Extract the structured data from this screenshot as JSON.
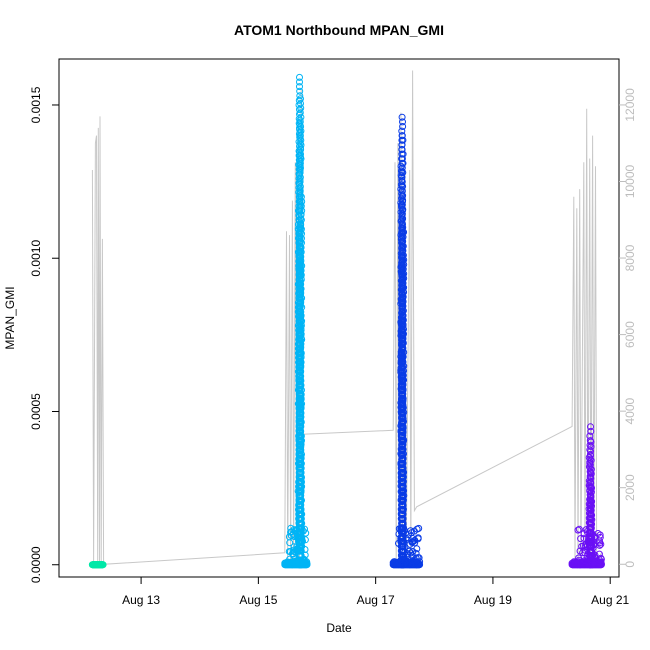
{
  "chart_data": {
    "type": "scatter",
    "title": "ATOM1 Northbound MPAN_GMI",
    "xlabel": "Date",
    "ylabel": "MPAN_GMI",
    "y_ticks": [
      "0.0000",
      "0.0005",
      "0.0010",
      "0.0015"
    ],
    "y_tick_values": [
      0,
      0.0005,
      0.001,
      0.0015
    ],
    "ylim": [
      -4e-05,
      0.00165
    ],
    "x_ticks": [
      "Aug 13",
      "Aug 15",
      "Aug 17",
      "Aug 19",
      "Aug 21"
    ],
    "x_tick_values": [
      13,
      15,
      17,
      19,
      21
    ],
    "xlim": [
      11.6,
      21.15
    ],
    "y2_ticks": [
      "0",
      "2000",
      "4000",
      "6000",
      "8000",
      "10000",
      "12000"
    ],
    "y2_tick_values": [
      0,
      2000,
      4000,
      6000,
      8000,
      10000,
      12000
    ],
    "y2lim": [
      -333,
      13200
    ],
    "series": [
      {
        "color": "#00e8a8",
        "x_start": 12.17,
        "x_end": 12.35,
        "max_value": 5e-06,
        "spikes": []
      },
      {
        "color": "#00b4f5",
        "x_start": 15.45,
        "x_end": 15.83,
        "max_value": 0.00159,
        "spikes": [
          {
            "x": 15.7,
            "y": 0.00159
          },
          {
            "x": 15.72,
            "y": 0.00152
          },
          {
            "x": 15.71,
            "y": 0.00145
          },
          {
            "x": 15.69,
            "y": 0.00135
          },
          {
            "x": 15.73,
            "y": 0.0012
          },
          {
            "x": 15.7,
            "y": 0.0011
          },
          {
            "x": 15.71,
            "y": 0.001
          },
          {
            "x": 15.72,
            "y": 0.0008
          },
          {
            "x": 15.7,
            "y": 0.00065
          },
          {
            "x": 15.71,
            "y": 0.00055
          },
          {
            "x": 15.72,
            "y": 0.0004
          },
          {
            "x": 15.7,
            "y": 0.00025
          },
          {
            "x": 15.73,
            "y": 0.00015
          }
        ]
      },
      {
        "color": "#0a3ce6",
        "x_start": 17.3,
        "x_end": 17.75,
        "max_value": 0.00146,
        "spikes": [
          {
            "x": 17.45,
            "y": 0.00146
          },
          {
            "x": 17.46,
            "y": 0.0014
          },
          {
            "x": 17.44,
            "y": 0.0013
          },
          {
            "x": 17.45,
            "y": 0.0012
          },
          {
            "x": 17.47,
            "y": 0.0011
          },
          {
            "x": 17.45,
            "y": 0.001
          },
          {
            "x": 17.46,
            "y": 0.0009
          },
          {
            "x": 17.44,
            "y": 0.0008
          },
          {
            "x": 17.45,
            "y": 0.0007
          },
          {
            "x": 17.46,
            "y": 0.00055
          },
          {
            "x": 17.45,
            "y": 0.0004
          },
          {
            "x": 17.46,
            "y": 0.00025
          },
          {
            "x": 17.47,
            "y": 0.00012
          }
        ]
      },
      {
        "color": "#6a10f5",
        "x_start": 20.35,
        "x_end": 20.85,
        "max_value": 0.00045,
        "spikes": [
          {
            "x": 20.66,
            "y": 0.00045
          },
          {
            "x": 20.67,
            "y": 0.0004
          },
          {
            "x": 20.65,
            "y": 0.00035
          },
          {
            "x": 20.66,
            "y": 0.0003
          },
          {
            "x": 20.68,
            "y": 0.00025
          },
          {
            "x": 20.66,
            "y": 0.0002
          },
          {
            "x": 20.67,
            "y": 0.00015
          },
          {
            "x": 20.69,
            "y": 0.0001
          }
        ]
      }
    ],
    "secondary_line": {
      "color": "#c8c8c8",
      "points": [
        [
          12.17,
          10300
        ],
        [
          12.19,
          0
        ],
        [
          12.22,
          11000
        ],
        [
          12.24,
          11200
        ],
        [
          12.26,
          0
        ],
        [
          12.27,
          11400
        ],
        [
          12.29,
          0
        ],
        [
          12.3,
          11700
        ],
        [
          12.32,
          0
        ],
        [
          12.34,
          8500
        ],
        [
          12.36,
          0
        ],
        [
          15.45,
          300
        ],
        [
          15.48,
          8700
        ],
        [
          15.5,
          0
        ],
        [
          15.53,
          8600
        ],
        [
          15.55,
          0
        ],
        [
          15.58,
          9500
        ],
        [
          15.6,
          0
        ],
        [
          15.63,
          10500
        ],
        [
          15.65,
          0
        ],
        [
          15.68,
          11400
        ],
        [
          15.7,
          0
        ],
        [
          15.73,
          12400
        ],
        [
          15.76,
          3400
        ],
        [
          15.8,
          3400
        ],
        [
          17.3,
          3500
        ],
        [
          17.33,
          10500
        ],
        [
          17.35,
          0
        ],
        [
          17.38,
          11000
        ],
        [
          17.4,
          0
        ],
        [
          17.43,
          11800
        ],
        [
          17.45,
          0
        ],
        [
          17.5,
          10200
        ],
        [
          17.52,
          0
        ],
        [
          17.58,
          10300
        ],
        [
          17.6,
          0
        ],
        [
          17.63,
          12900
        ],
        [
          17.66,
          1400
        ],
        [
          17.7,
          1500
        ],
        [
          20.35,
          3600
        ],
        [
          20.38,
          9600
        ],
        [
          20.4,
          0
        ],
        [
          20.43,
          9300
        ],
        [
          20.45,
          0
        ],
        [
          20.48,
          9800
        ],
        [
          20.5,
          0
        ],
        [
          20.55,
          10500
        ],
        [
          20.57,
          0
        ],
        [
          20.6,
          11900
        ],
        [
          20.62,
          0
        ],
        [
          20.65,
          10600
        ],
        [
          20.67,
          0
        ],
        [
          20.7,
          11200
        ],
        [
          20.72,
          0
        ],
        [
          20.75,
          10400
        ],
        [
          20.77,
          0
        ],
        [
          20.85,
          300
        ]
      ]
    }
  }
}
